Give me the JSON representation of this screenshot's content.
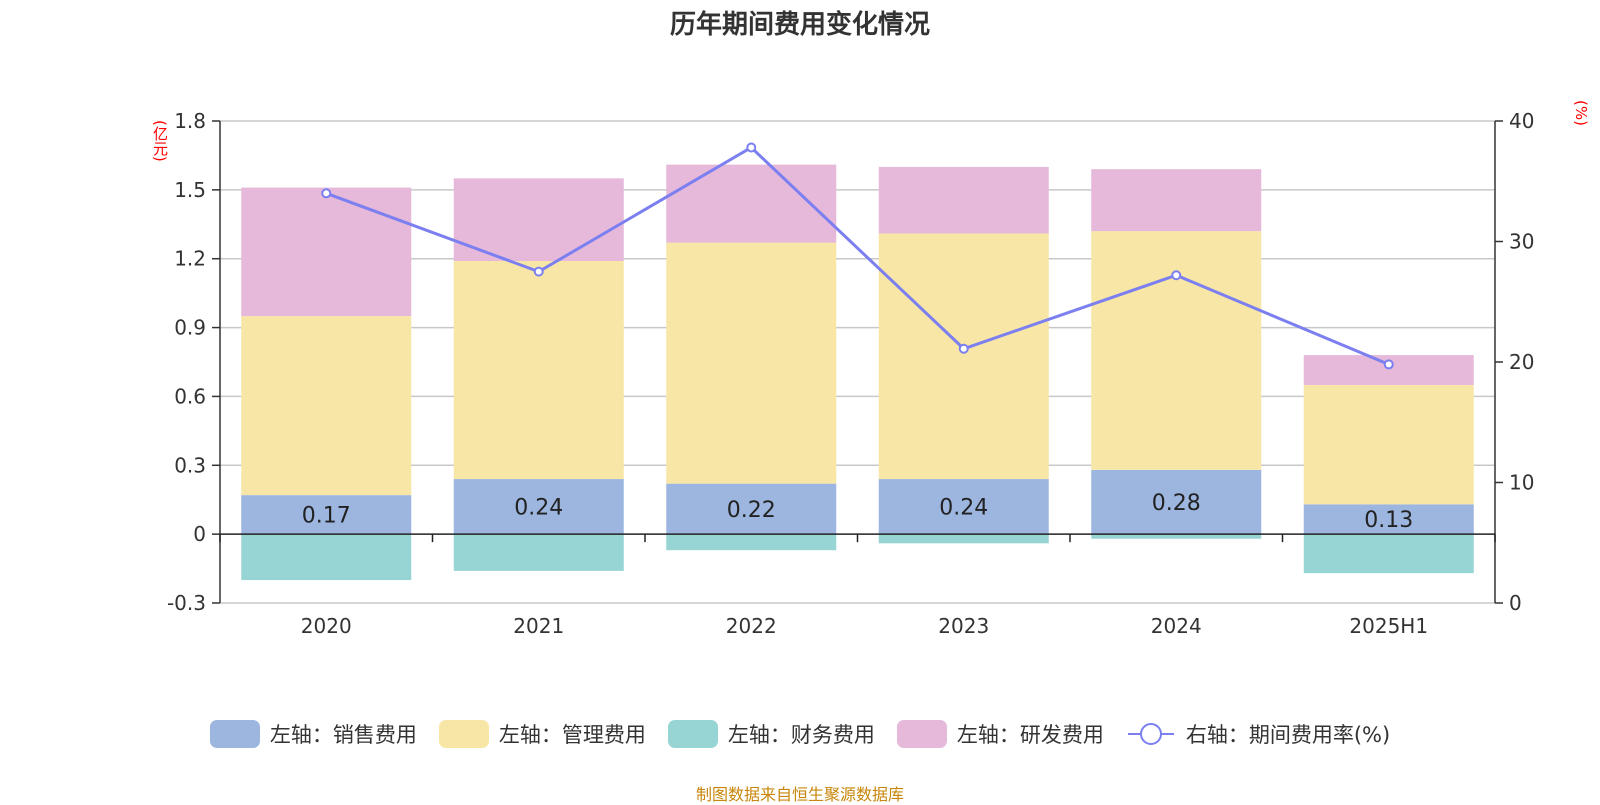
{
  "chart_data": {
    "type": "bar",
    "title": "历年期间费用变化情况",
    "categories": [
      "2020",
      "2021",
      "2022",
      "2023",
      "2024",
      "2025H1"
    ],
    "left_axis": {
      "unit_label": "(亿元)",
      "ylim": [
        -0.3,
        1.8
      ],
      "ticks": [
        "1.8",
        "1.5",
        "1.2",
        "0.9",
        "0.6",
        "0.3",
        "0",
        "-0.3"
      ]
    },
    "right_axis": {
      "unit_label": "(%)",
      "ylim": [
        0,
        40
      ],
      "ticks": [
        "40",
        "30",
        "20",
        "10",
        "0"
      ]
    },
    "grid": true,
    "legend_position": "bottom",
    "series": [
      {
        "name": "左轴：销售费用",
        "axis": "left",
        "kind": "bar",
        "color": "#9cb6e0",
        "values": [
          0.17,
          0.24,
          0.22,
          0.24,
          0.28,
          0.13
        ],
        "labels": [
          "0.17",
          "0.24",
          "0.22",
          "0.24",
          "0.28",
          "0.13"
        ]
      },
      {
        "name": "左轴：管理费用",
        "axis": "left",
        "kind": "bar",
        "color": "#f7e6a6",
        "values": [
          0.78,
          0.95,
          1.05,
          1.07,
          1.04,
          0.52
        ]
      },
      {
        "name": "左轴：财务费用",
        "axis": "left",
        "kind": "bar",
        "color": "#97d4d4",
        "values": [
          -0.2,
          -0.16,
          -0.07,
          -0.04,
          -0.02,
          -0.17
        ]
      },
      {
        "name": "左轴：研发费用",
        "axis": "left",
        "kind": "bar",
        "color": "#e6b8da",
        "values": [
          0.56,
          0.36,
          0.34,
          0.29,
          0.27,
          0.13
        ]
      },
      {
        "name": "右轴：期间费用率(%)",
        "axis": "right",
        "kind": "line",
        "color": "#7b7ff0",
        "values": [
          34.0,
          27.5,
          37.8,
          21.1,
          27.2,
          19.8
        ]
      }
    ]
  },
  "source": "制图数据来自恒生聚源数据库"
}
